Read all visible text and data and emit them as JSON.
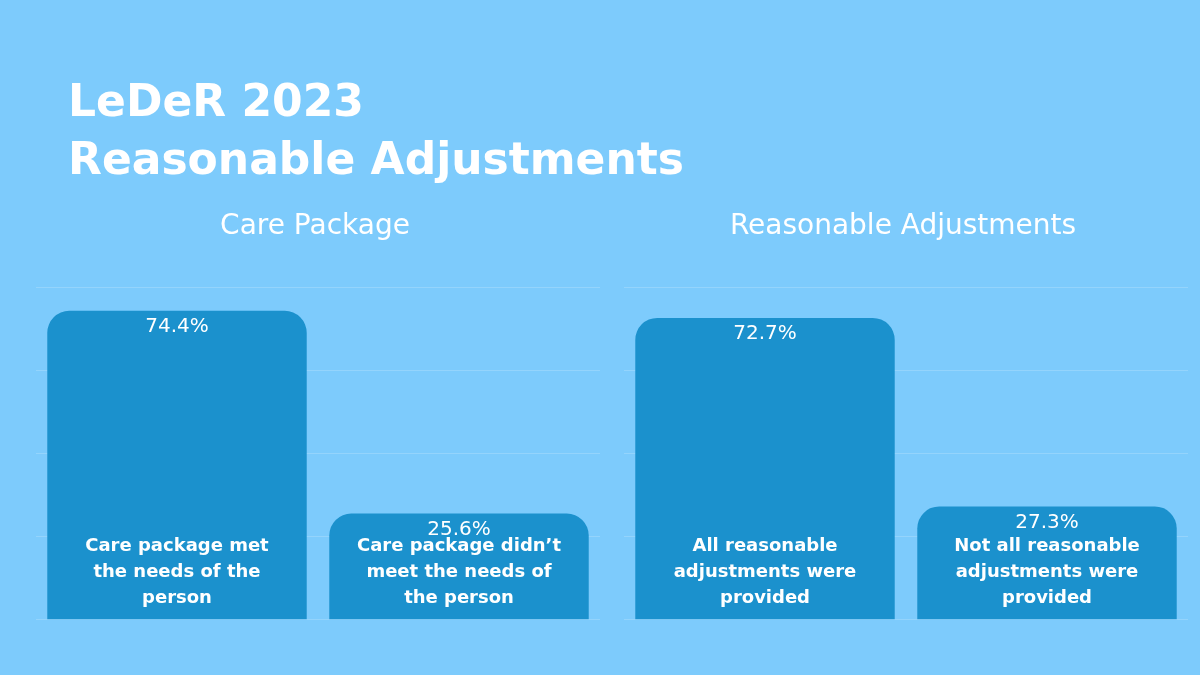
{
  "chart_data": [
    {
      "type": "other",
      "title": "LeDeR 2023\nReasonable Adjustments"
    },
    {
      "type": "bar",
      "title": "Care Package",
      "categories": [
        "Care package met the needs of the person",
        "Care package didn’t meet the needs of the person"
      ],
      "values": [
        74.4,
        25.6
      ],
      "color": "#1b91cd",
      "value_labels": [
        "74.4%",
        "25.6%"
      ],
      "ylim": [
        0,
        80
      ],
      "yticks": [
        {
          "value": 0,
          "label": null
        },
        {
          "value": 20,
          "label": null
        },
        {
          "value": 40,
          "label": null
        },
        {
          "value": 60,
          "label": null
        },
        {
          "value": 80,
          "label": null
        }
      ],
      "grid": "y"
    },
    {
      "type": "bar",
      "title": "Reasonable Adjustments",
      "categories": [
        "All reasonable adjustments were provided",
        "Not all reasonable adjustments were provided"
      ],
      "values": [
        72.7,
        27.3
      ],
      "color": "#1b91cd",
      "value_labels": [
        "72.7%",
        "27.3%"
      ],
      "ylim": [
        0,
        80
      ],
      "yticks": [
        {
          "value": 0,
          "label": null
        },
        {
          "value": 20,
          "label": null
        },
        {
          "value": 40,
          "label": null
        },
        {
          "value": 60,
          "label": null
        },
        {
          "value": 80,
          "label": null
        }
      ],
      "grid": "y"
    }
  ]
}
